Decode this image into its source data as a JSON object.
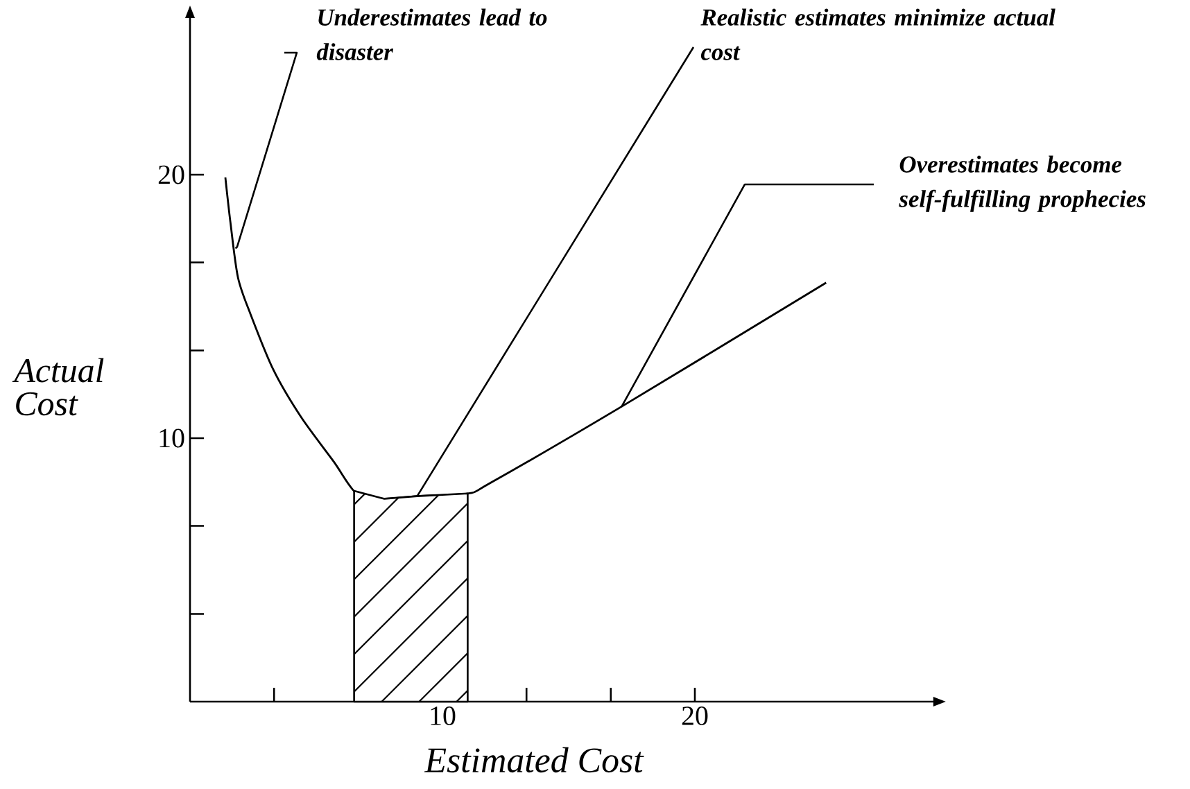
{
  "chart_data": {
    "type": "line",
    "xlabel": "Estimated Cost",
    "ylabel": "Actual Cost",
    "x": [
      1.4,
      1.6,
      1.9,
      2.4,
      3.3,
      4.4,
      5.7,
      6.6,
      7.7,
      9.0,
      11.0,
      11.9,
      17.1,
      25.2
    ],
    "series": [
      {
        "color": "#000000",
        "values": [
          19.9,
          18.2,
          16.1,
          14.7,
          12.6,
          10.8,
          9.1,
          7.9,
          7.7,
          7.8,
          7.9,
          8.3,
          11.2,
          15.9
        ]
      },
      {
        "type": "area",
        "color": "#000000",
        "x": [
          6.5,
          7.7,
          9.0,
          11.0
        ],
        "values": [
          8.0,
          7.7,
          7.8,
          7.9
        ]
      }
    ],
    "xlim": [
      0,
      29.5
    ],
    "ylim": [
      0,
      26
    ],
    "xticks": [
      {
        "value": 3.33,
        "label": null
      },
      {
        "value": 6.67,
        "label": null
      },
      10,
      {
        "value": 13.33,
        "label": null
      },
      {
        "value": 16.67,
        "label": null
      },
      20
    ],
    "yticks": [
      {
        "value": 3.33,
        "label": null
      },
      {
        "value": 6.67,
        "label": null
      },
      10,
      {
        "value": 13.33,
        "label": null
      },
      {
        "value": 16.67,
        "label": null
      },
      20
    ],
    "annotations": [
      {
        "text": "Underestimates lead to disaster",
        "x": 1.8,
        "y": 17.2
      },
      {
        "text": "Realistic estimates minimize actual cost",
        "x": 9.0,
        "y": 7.8
      },
      {
        "text": "Overestimates become self-fulfilling prophecies",
        "x": 17.1,
        "y": 11.2
      }
    ],
    "marker": "none",
    "line_style": "solid"
  }
}
